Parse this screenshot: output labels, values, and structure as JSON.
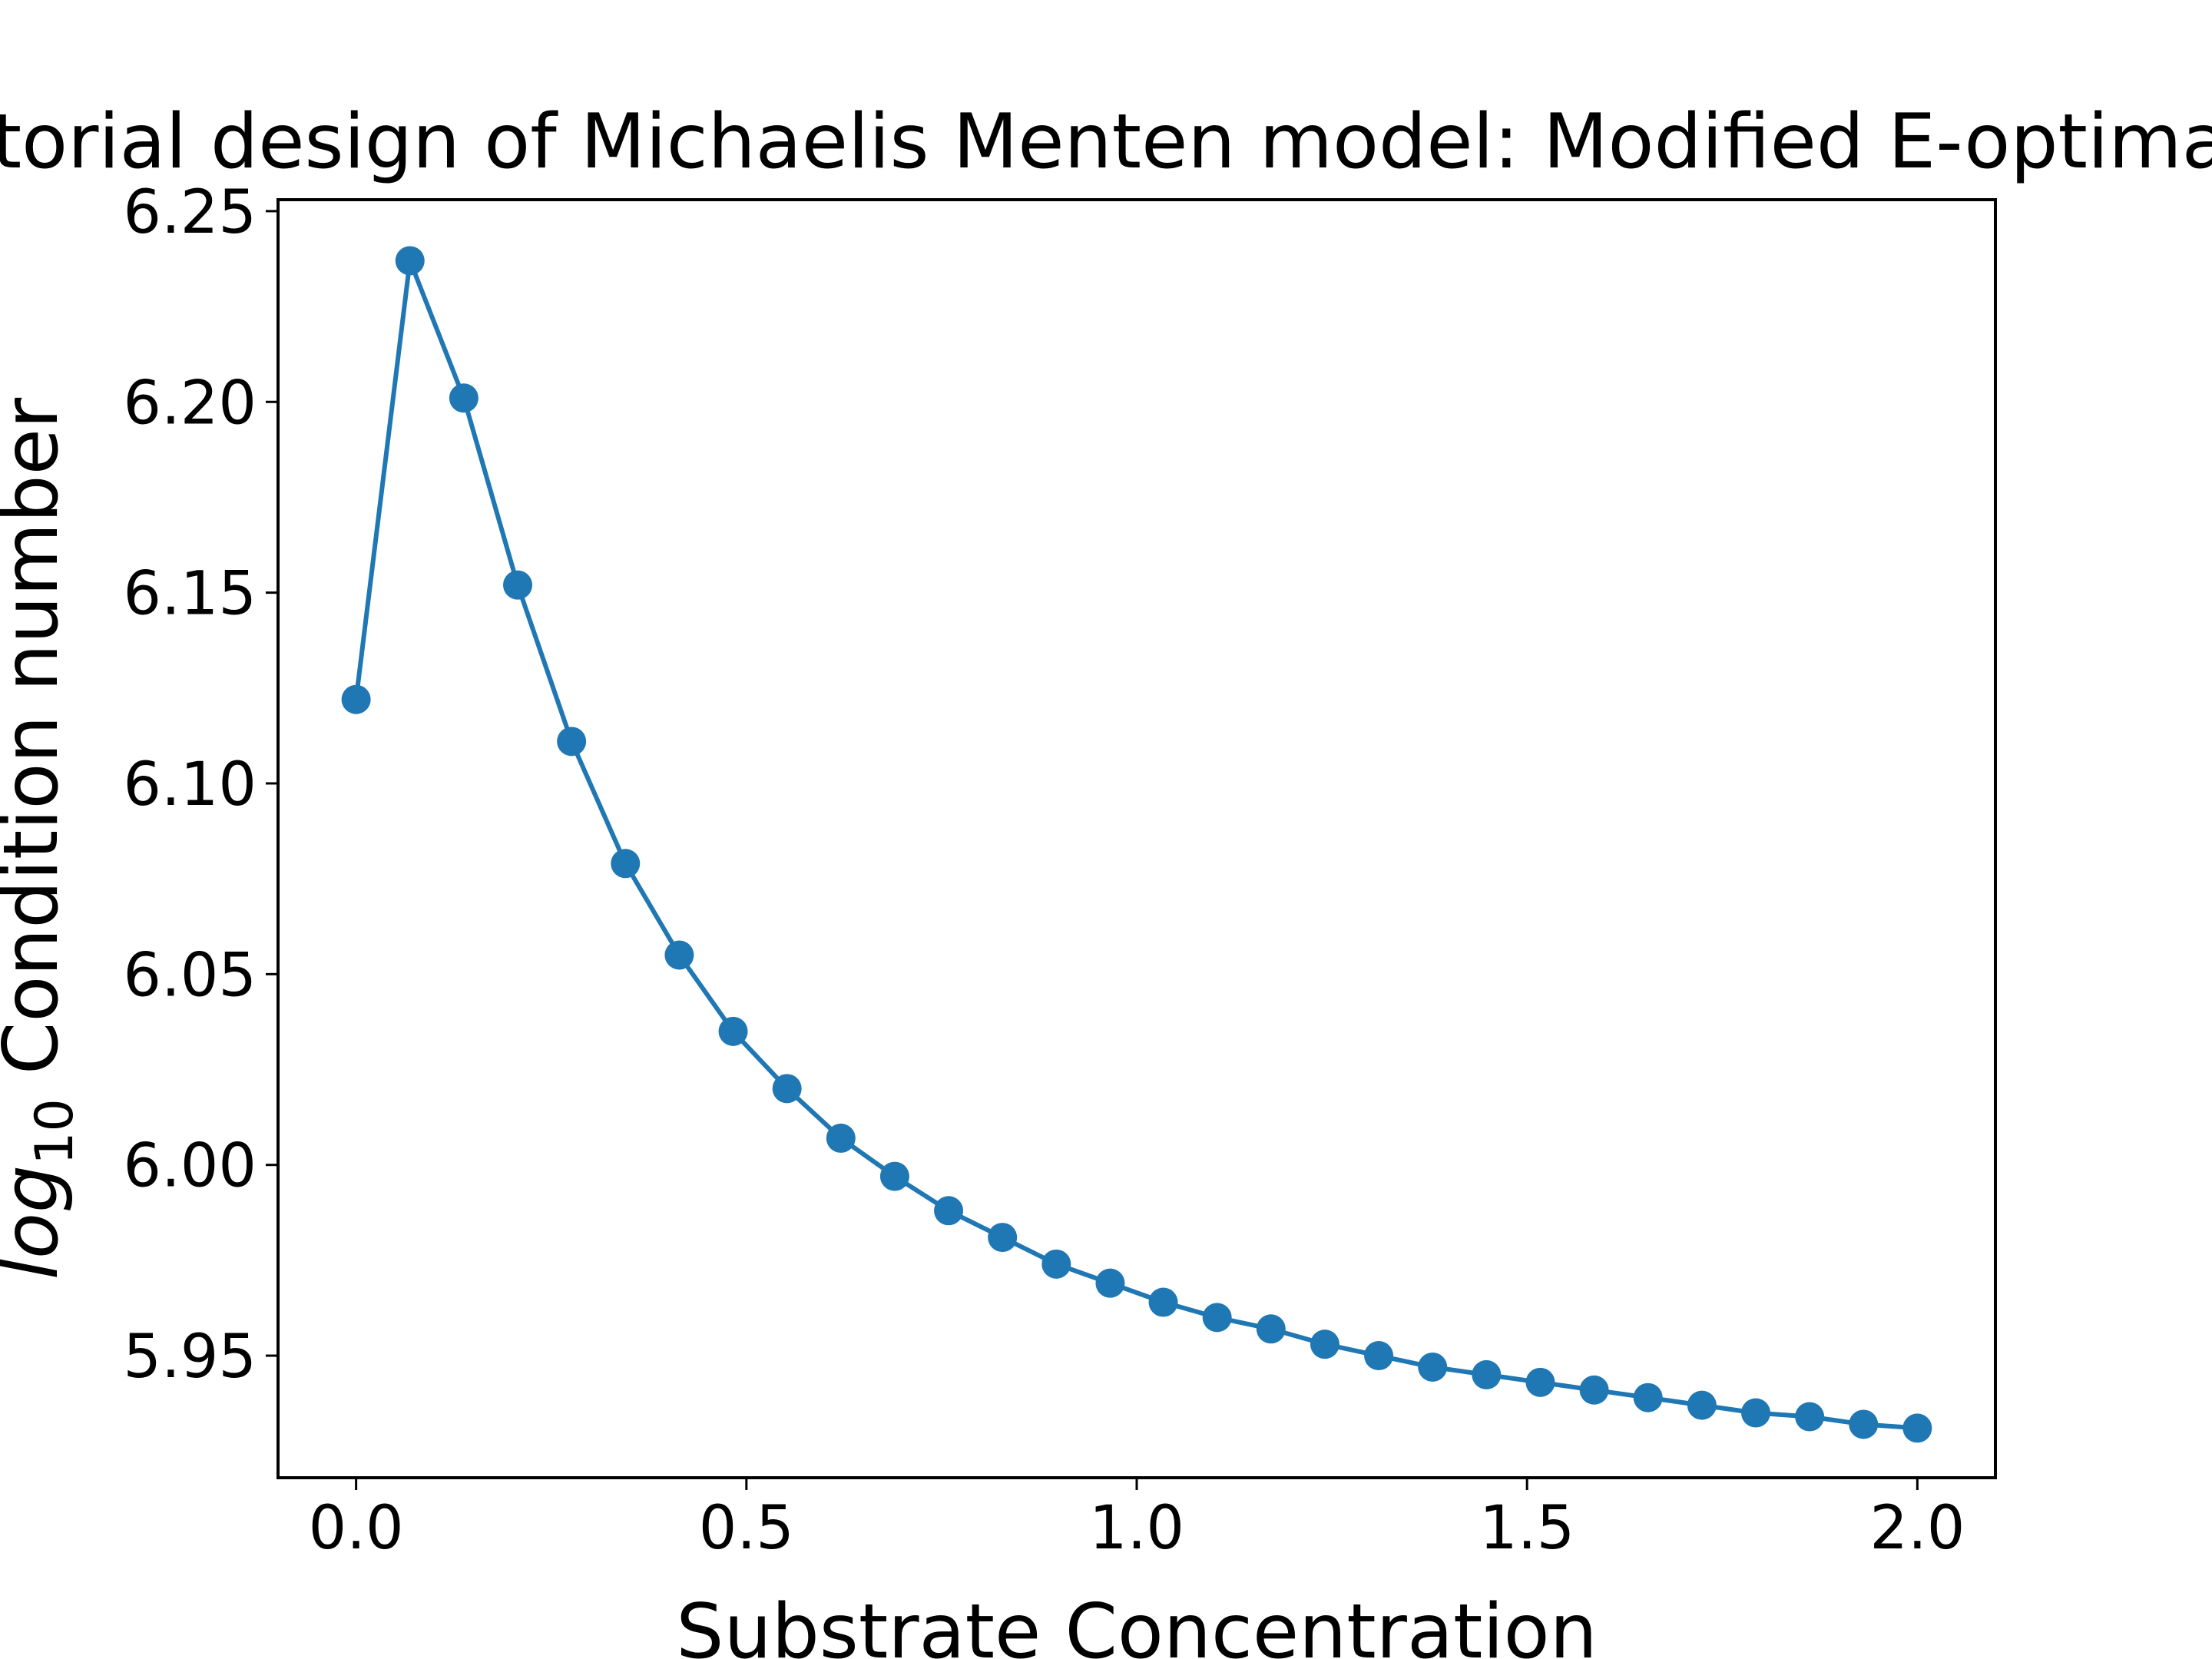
{
  "chart_data": {
    "type": "line",
    "title": "Factorial design of Michaelis Menten model: Modified E-optimality",
    "xlabel": "Substrate Concentration",
    "ylabel_main": "log",
    "ylabel_sub": "10",
    "ylabel_rest": " Condition number",
    "xlim": [
      -0.1,
      2.1
    ],
    "ylim": [
      5.918,
      6.253
    ],
    "xticks": [
      0.0,
      0.5,
      1.0,
      1.5,
      2.0
    ],
    "xtick_labels": [
      "0.0",
      "0.5",
      "1.0",
      "1.5",
      "2.0"
    ],
    "yticks": [
      5.95,
      6.0,
      6.05,
      6.1,
      6.15,
      6.2,
      6.25
    ],
    "ytick_labels": [
      "5.95",
      "6.00",
      "6.05",
      "6.10",
      "6.15",
      "6.20",
      "6.25"
    ],
    "grid": false,
    "series_color": "#1f77b4",
    "x": [
      0.0,
      0.069,
      0.138,
      0.207,
      0.276,
      0.345,
      0.414,
      0.483,
      0.552,
      0.621,
      0.69,
      0.759,
      0.828,
      0.897,
      0.966,
      1.034,
      1.103,
      1.172,
      1.241,
      1.31,
      1.379,
      1.448,
      1.517,
      1.586,
      1.655,
      1.724,
      1.793,
      1.862,
      1.931,
      2.0
    ],
    "y": [
      6.122,
      6.237,
      6.201,
      6.152,
      6.111,
      6.079,
      6.055,
      6.035,
      6.02,
      6.007,
      5.997,
      5.988,
      5.981,
      5.974,
      5.969,
      5.964,
      5.96,
      5.957,
      5.953,
      5.95,
      5.947,
      5.945,
      5.943,
      5.941,
      5.939,
      5.937,
      5.935,
      5.934,
      5.932,
      5.931
    ]
  }
}
